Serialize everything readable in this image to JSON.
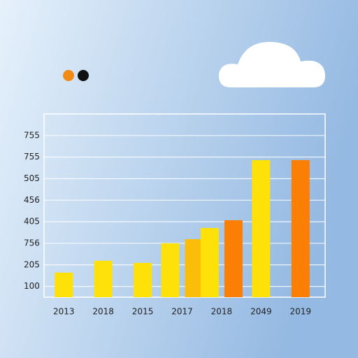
{
  "chart_data": {
    "type": "bar",
    "categories": [
      "2013",
      "2018",
      "2015",
      "2017",
      "2018",
      "2049",
      "2019"
    ],
    "series": [
      {
        "colors": [
          "#fde109",
          "#fde109",
          "#fde109",
          "#fde109",
          "#fde109",
          "#fde109",
          "#fde109"
        ],
        "values": [
          1.14,
          1.69,
          1.59,
          2.5,
          3.21,
          6.36,
          null
        ]
      },
      {
        "colors": [
          "#fbbd08",
          "#fbbd08",
          "#fbbd08",
          "#fbbd08",
          "#fb7e05",
          "#fb7e05",
          "#fb7e05"
        ],
        "values": [
          null,
          null,
          null,
          2.69,
          3.57,
          null,
          6.36
        ]
      }
    ],
    "ylim": [
      0,
      8.5
    ],
    "yticks": [
      {
        "value": 0.5,
        "label": "100"
      },
      {
        "value": 1.5,
        "label": "205"
      },
      {
        "value": 2.5,
        "label": "756"
      },
      {
        "value": 3.5,
        "label": "405"
      },
      {
        "value": 4.5,
        "label": "456"
      },
      {
        "value": 5.5,
        "label": "505"
      },
      {
        "value": 6.5,
        "label": "755"
      },
      {
        "value": 7.5,
        "label": "755"
      }
    ],
    "grid": true
  }
}
